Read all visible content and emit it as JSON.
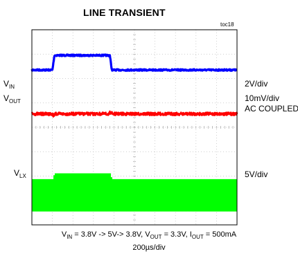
{
  "figure": {
    "title": "LINE TRANSIENT",
    "toc": "toc18"
  },
  "chart_data": {
    "type": "line",
    "grid": true,
    "divisions": {
      "x": 10,
      "y": 8
    },
    "time_per_div": "200µs/div",
    "series": [
      {
        "name": "V_IN",
        "label_main": "V",
        "label_sub": "IN",
        "color": "#0000ff",
        "scale": "2V/div",
        "x_us": [
          0,
          200,
          220,
          760,
          780,
          1200
        ],
        "y_volts": [
          3.8,
          3.8,
          5.0,
          5.0,
          3.8,
          3.8
        ]
      },
      {
        "name": "V_OUT",
        "label_main": "V",
        "label_sub": "OUT",
        "color": "#ff0000",
        "scale": "10mV/div",
        "coupling": "AC COUPLED",
        "x_us": [
          0,
          1200
        ],
        "y_volts": [
          3.3,
          3.3
        ]
      },
      {
        "name": "V_LX",
        "label_main": "V",
        "label_sub": "LX",
        "color": "#00ff00",
        "scale": "5V/div",
        "x_us": [
          0,
          200,
          220,
          760,
          780,
          1200
        ],
        "y_volts_high": [
          3.8,
          3.8,
          5.0,
          5.0,
          3.8,
          3.8
        ],
        "y_volts_low": [
          0,
          0,
          0,
          0,
          0,
          0
        ]
      }
    ]
  },
  "caption": {
    "vin_main": "V",
    "vin_sub": "IN",
    "vin_text": " = 3.8V -> 5V-> 3.8V, ",
    "vout_main": "V",
    "vout_sub": "OUT",
    "vout_text": " = 3.3V, ",
    "iout_main": "I",
    "iout_sub": "OUT",
    "iout_text": " = 500mA",
    "timebase": "200µs/div"
  }
}
